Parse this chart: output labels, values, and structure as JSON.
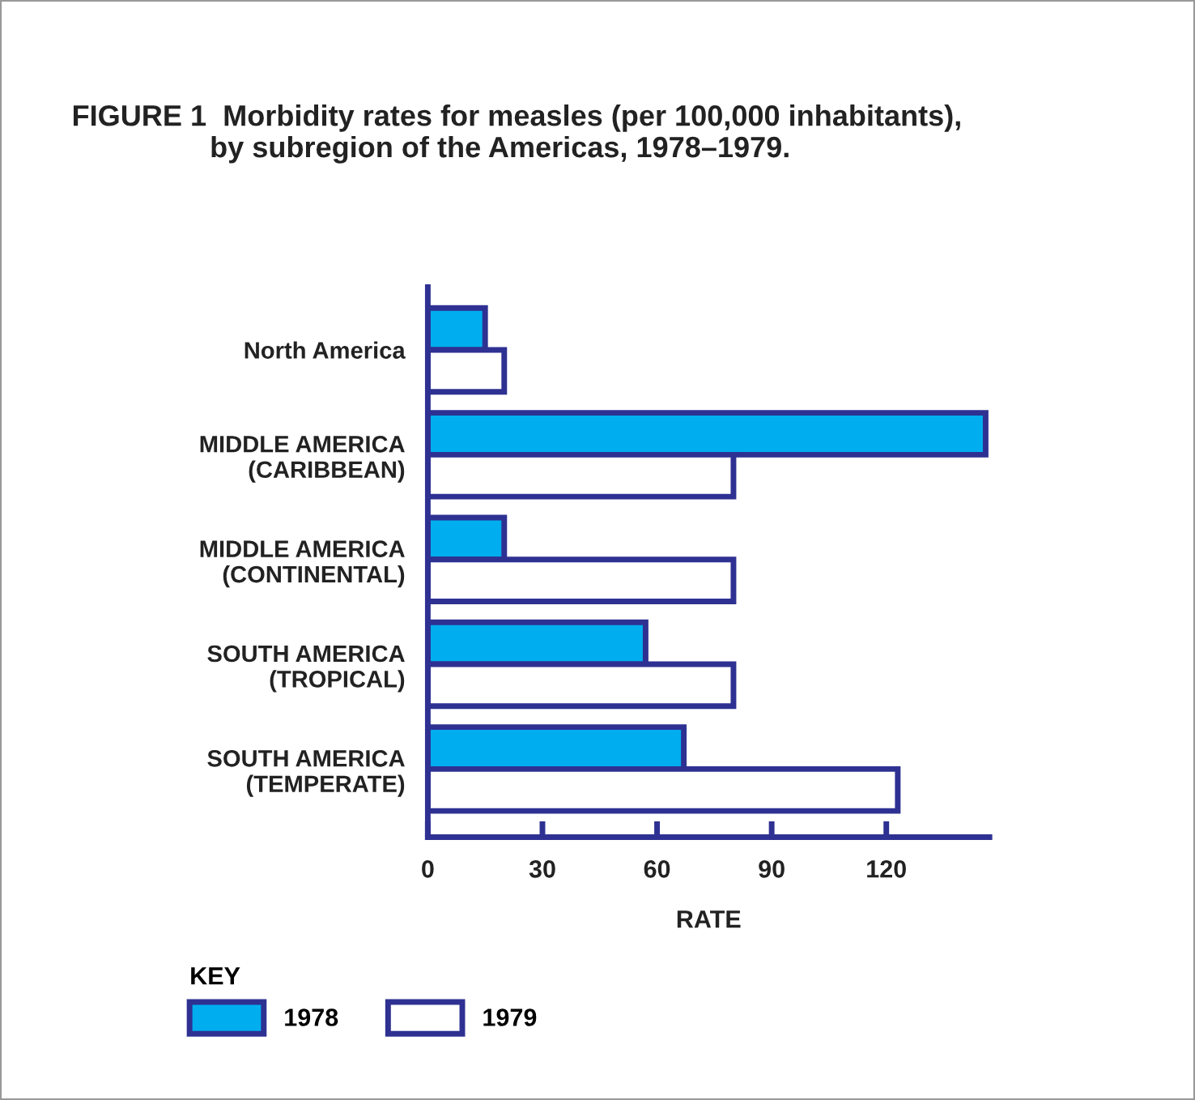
{
  "chart_data": {
    "type": "bar",
    "orientation": "horizontal",
    "title": "FIGURE 1  Morbidity rates for measles (per 100,000 inhabitants),\n                 by subregion of the Americas, 1978–1979.",
    "categories": [
      "North America",
      "MIDDLE AMERICA\n(CARIBBEAN)",
      "MIDDLE AMERICA\n(CONTINENTAL)",
      "SOUTH AMERICA\n(TROPICAL)",
      "SOUTH AMERICA\n(TEMPERATE)"
    ],
    "series": [
      {
        "name": "1978",
        "color": "#00aeef",
        "values": [
          15,
          146,
          20,
          57,
          67
        ]
      },
      {
        "name": "1979",
        "color": "#ffffff",
        "values": [
          20,
          80,
          80,
          80,
          123
        ]
      }
    ],
    "xlabel": "RATE",
    "legend_title": "KEY",
    "legend": "bottom left",
    "xlim": [
      0,
      147
    ],
    "xticks": [
      0,
      30,
      60,
      90,
      120
    ],
    "grid": false
  }
}
